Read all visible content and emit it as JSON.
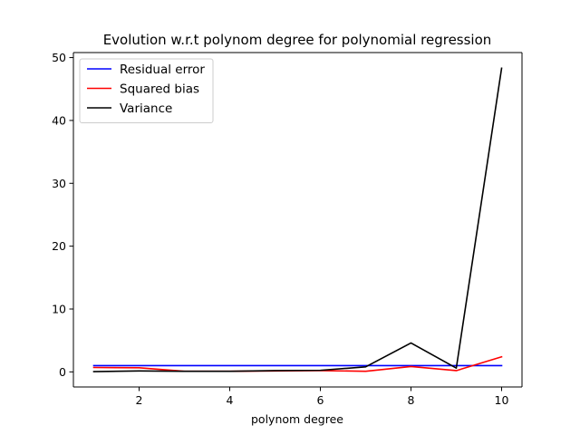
{
  "chart_data": {
    "type": "line",
    "title": "Evolution w.r.t polynom degree for polynomial regression",
    "xlabel": "polynom degree",
    "ylabel": "",
    "x": [
      1,
      2,
      3,
      4,
      5,
      6,
      7,
      8,
      9,
      10
    ],
    "xlim": [
      0.55,
      10.45
    ],
    "ylim": [
      -2.4,
      50.8
    ],
    "xticks": [
      2,
      4,
      6,
      8,
      10
    ],
    "yticks": [
      0,
      10,
      20,
      30,
      40,
      50
    ],
    "grid": false,
    "legend_position": "upper-left",
    "series": [
      {
        "name": "Residual error",
        "color": "#0000ff",
        "values": [
          1.0,
          1.0,
          1.0,
          1.0,
          1.0,
          1.0,
          1.0,
          1.0,
          1.0,
          1.0
        ]
      },
      {
        "name": "Squared bias",
        "color": "#ff0000",
        "values": [
          0.7,
          0.65,
          0.1,
          0.1,
          0.15,
          0.2,
          0.1,
          0.85,
          0.2,
          2.4
        ]
      },
      {
        "name": "Variance",
        "color": "#000000",
        "values": [
          0.05,
          0.15,
          0.1,
          0.1,
          0.2,
          0.25,
          0.8,
          4.6,
          0.6,
          48.3
        ]
      }
    ]
  }
}
